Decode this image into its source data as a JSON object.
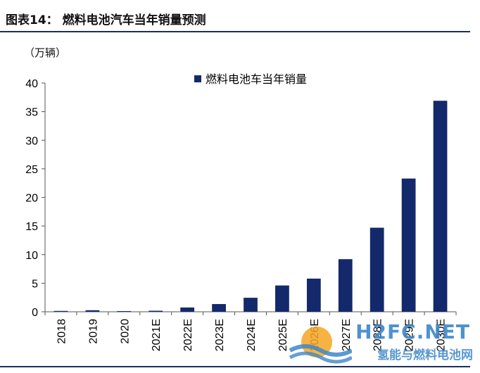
{
  "header": {
    "title": "图表14：  燃料电池汽车当年销量预测"
  },
  "chart_data": {
    "type": "bar",
    "unit_label": "（万辆）",
    "categories": [
      "2018",
      "2019",
      "2020",
      "2021E",
      "2022E",
      "2023E",
      "2024E",
      "2025E",
      "2026E",
      "2027E",
      "2028E",
      "2029E",
      "2030E"
    ],
    "series": [
      {
        "name": "燃料电池车当年销量",
        "values": [
          0.15,
          0.27,
          0.12,
          0.18,
          0.75,
          1.35,
          2.45,
          4.6,
          5.8,
          9.2,
          14.7,
          23.3,
          36.9
        ]
      }
    ],
    "ylim": [
      0,
      40
    ],
    "yticks": [
      "0",
      "5",
      "10",
      "15",
      "20",
      "25",
      "30",
      "35",
      "40"
    ],
    "legend_position": "top-center",
    "grid": false,
    "bar_color": "#13296b"
  },
  "watermark": {
    "brand": "H2FC.NET",
    "cn_text": "氢能与燃料电池网"
  }
}
